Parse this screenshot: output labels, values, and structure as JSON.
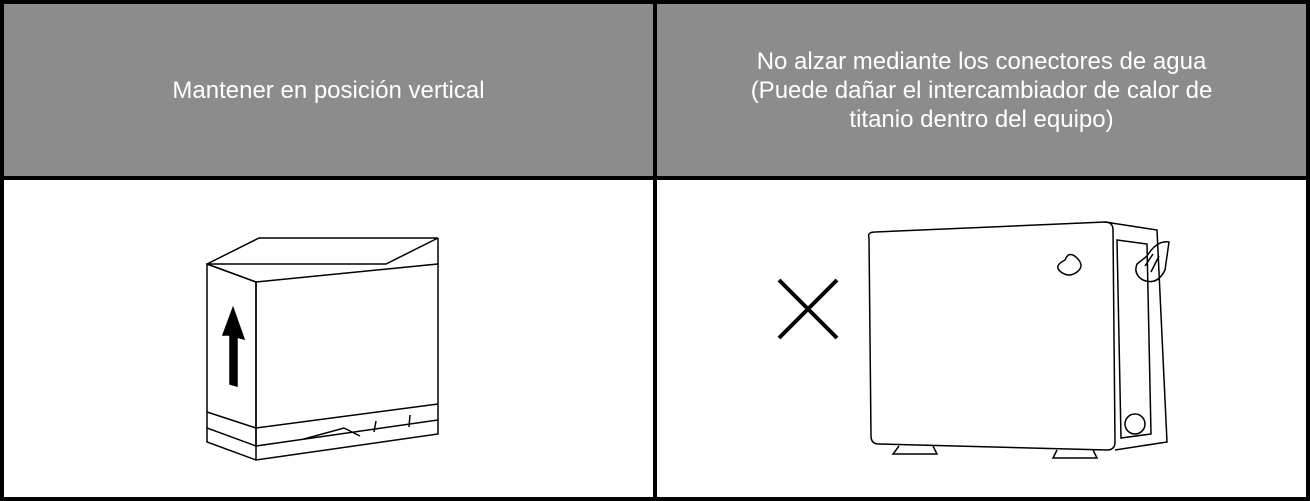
{
  "table": {
    "header": [
      {
        "lines": [
          "Mantener en posición vertical"
        ]
      },
      {
        "lines": [
          "No alzar mediante los conectores de agua",
          "(Puede dañar el intercambiador de calor de",
          "titanio dentro del equipo)"
        ]
      }
    ]
  }
}
